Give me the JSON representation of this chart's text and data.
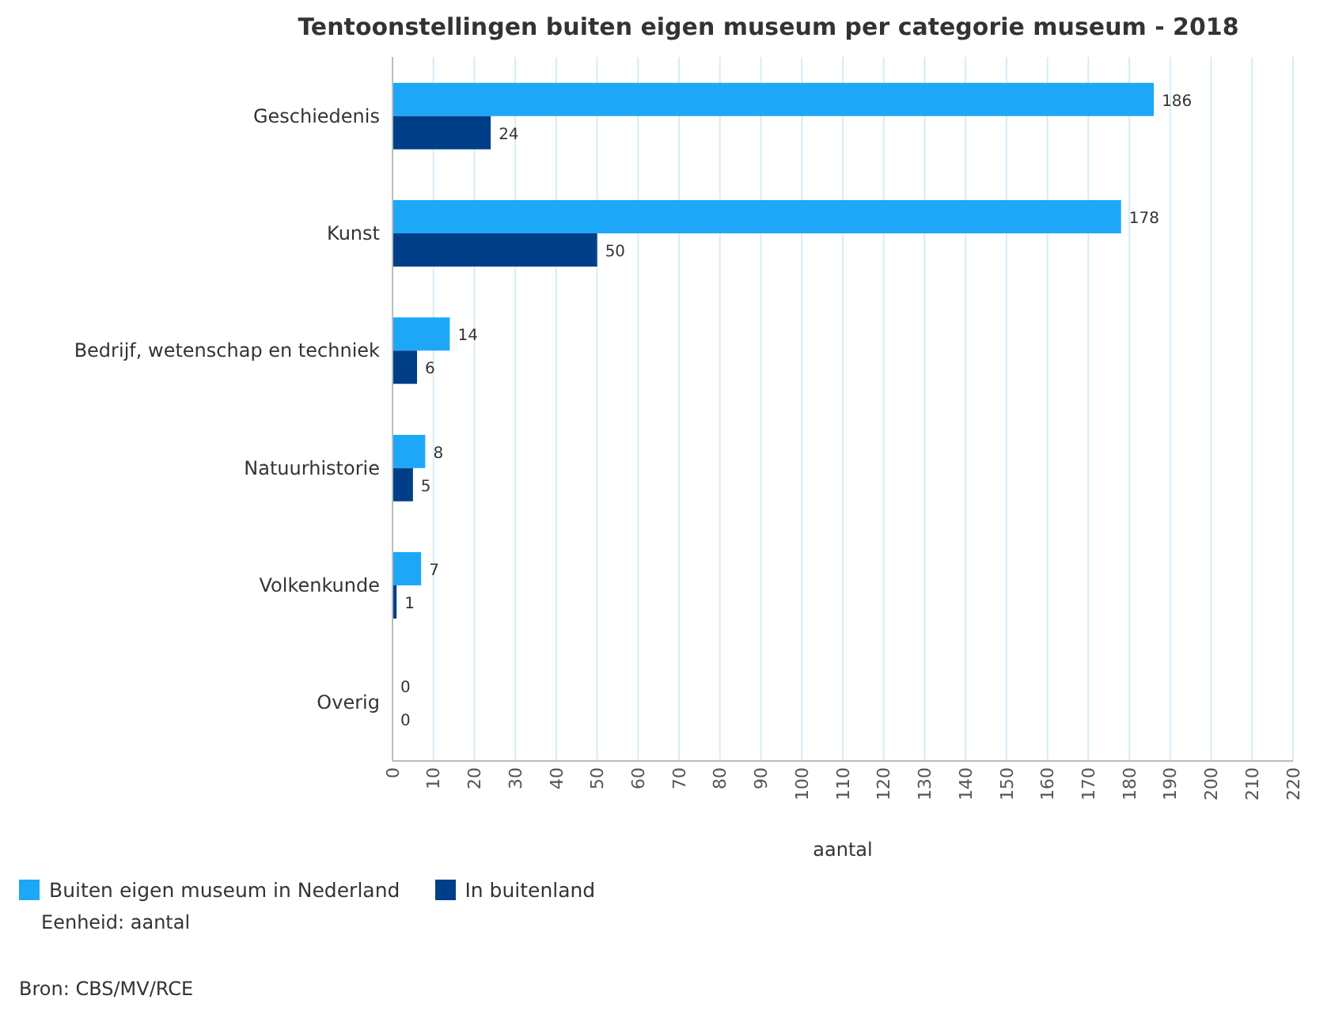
{
  "chart_data": {
    "type": "bar",
    "orientation": "horizontal",
    "title": "Tentoonstellingen buiten eigen museum per categorie museum - 2018",
    "xlabel": "aantal",
    "categories": [
      "Geschiedenis",
      "Kunst",
      "Bedrijf, wetenschap en techniek",
      "Natuurhistorie",
      "Volkenkunde",
      "Overig"
    ],
    "series": [
      {
        "name": "Buiten eigen museum in Nederland",
        "color": "#1ea7f7",
        "values": [
          186,
          178,
          14,
          8,
          7,
          0
        ]
      },
      {
        "name": "In buitenland",
        "color": "#003f87",
        "values": [
          24,
          50,
          6,
          5,
          1,
          0
        ]
      }
    ],
    "xlim": [
      0,
      220
    ],
    "xticks": [
      0,
      10,
      20,
      30,
      40,
      50,
      60,
      70,
      80,
      90,
      100,
      110,
      120,
      130,
      140,
      150,
      160,
      170,
      180,
      190,
      200,
      210,
      220
    ],
    "grid": "x",
    "legend": "bottom",
    "data_labels": true,
    "annotations": [
      "Eenheid: aantal",
      "Bron: CBS/MV/RCE"
    ]
  }
}
